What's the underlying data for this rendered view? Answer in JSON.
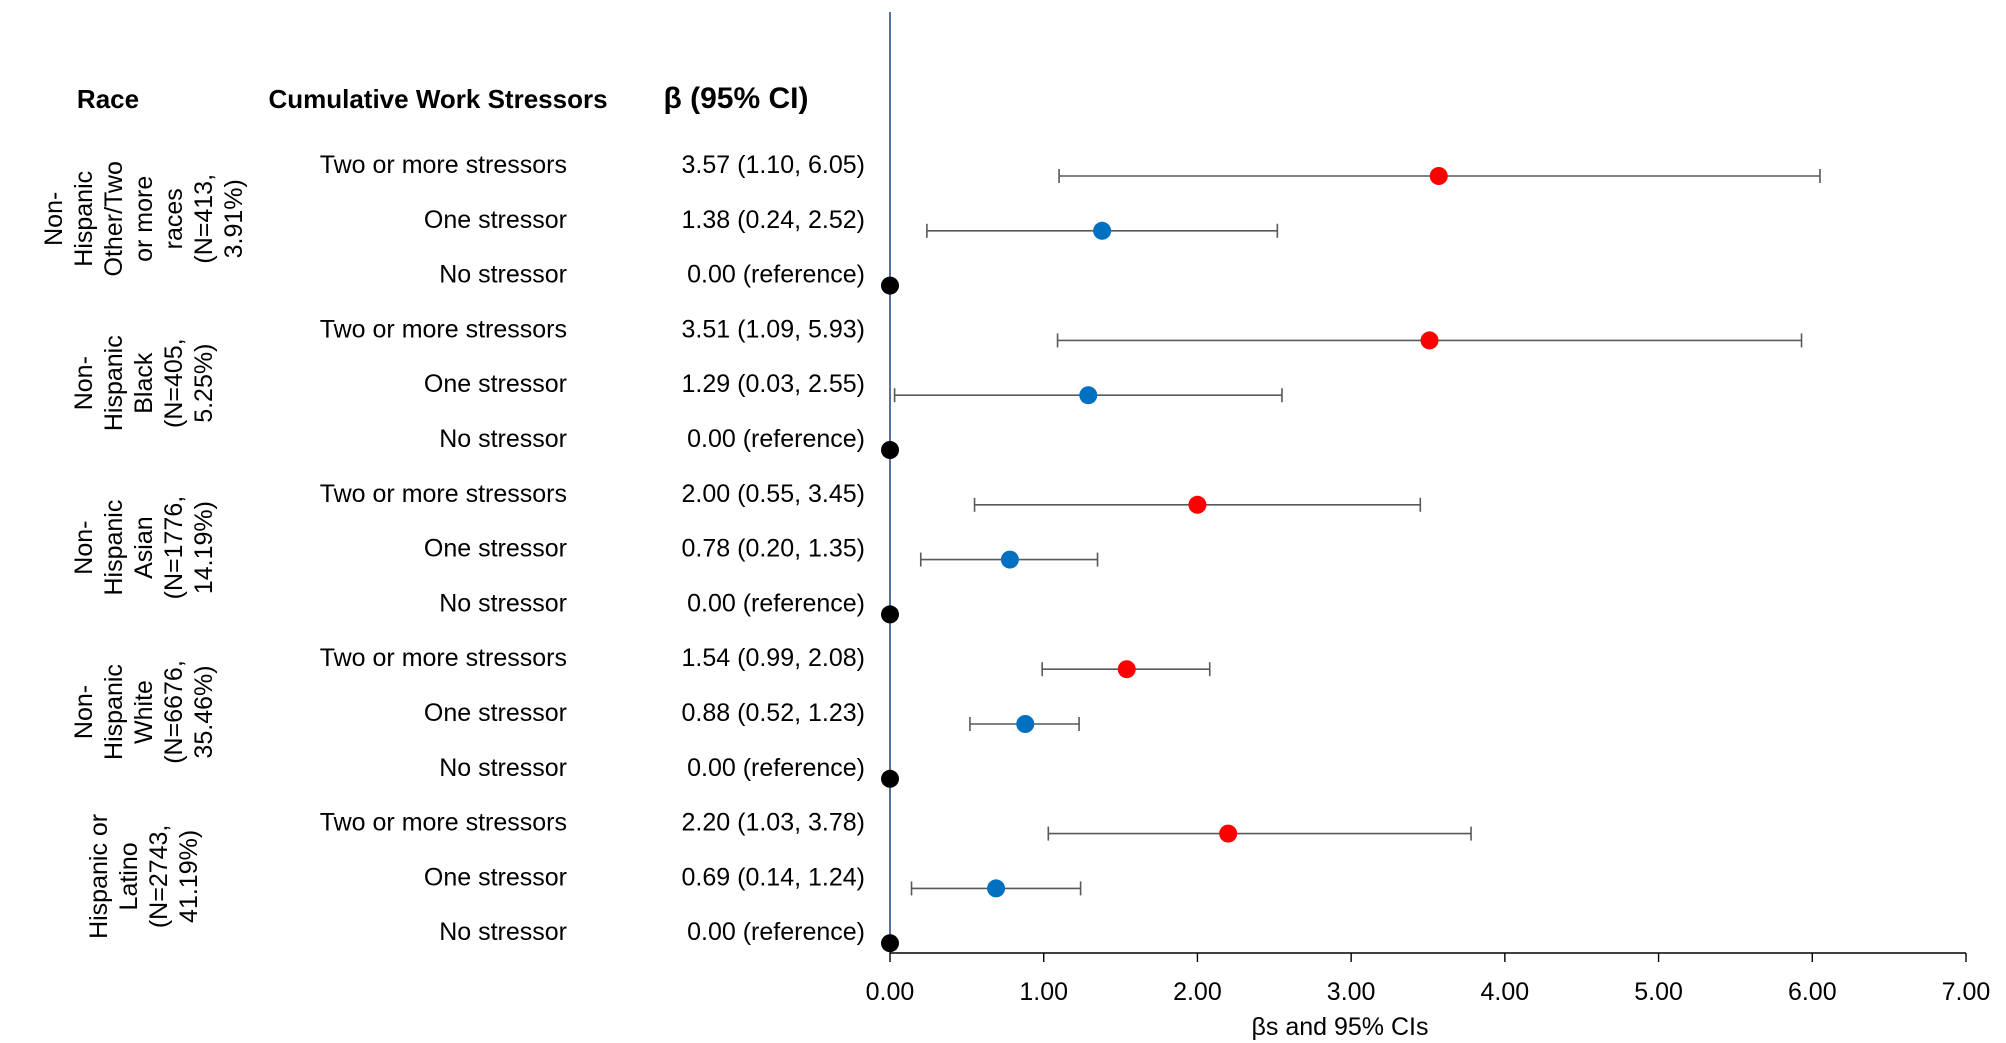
{
  "chart_data": {
    "type": "forest",
    "headers": {
      "race": "Race",
      "stressors": "Cumulative Work Stressors",
      "beta": "β (95% CI)"
    },
    "xlabel": "βs and 95% CIs",
    "xlim": [
      0,
      7
    ],
    "xticks": [
      "0.00",
      "1.00",
      "2.00",
      "3.00",
      "4.00",
      "5.00",
      "6.00",
      "7.00"
    ],
    "colors": {
      "two_or_more": "#ff0000",
      "one": "#0070c0",
      "none": "#000000",
      "axis": "#2f4a8c",
      "whisker": "#595959"
    },
    "groups": [
      {
        "race_lines": [
          "Non-",
          "Hispanic",
          "Other/Two",
          "or more",
          "races",
          "(N=413,",
          "3.91%)"
        ],
        "rows": [
          {
            "label": "Two or more stressors",
            "ci_text": "3.57 (1.10, 6.05)",
            "beta": 3.57,
            "lo": 1.1,
            "hi": 6.05,
            "level": "two_or_more"
          },
          {
            "label": "One stressor",
            "ci_text": "1.38 (0.24, 2.52)",
            "beta": 1.38,
            "lo": 0.24,
            "hi": 2.52,
            "level": "one"
          },
          {
            "label": "No stressor",
            "ci_text": "0.00 (reference)",
            "beta": 0.0,
            "lo": null,
            "hi": null,
            "level": "none"
          }
        ]
      },
      {
        "race_lines": [
          "Non-",
          "Hispanic",
          "Black",
          "(N=405,",
          "5.25%)"
        ],
        "rows": [
          {
            "label": "Two or more stressors",
            "ci_text": "3.51 (1.09, 5.93)",
            "beta": 3.51,
            "lo": 1.09,
            "hi": 5.93,
            "level": "two_or_more"
          },
          {
            "label": "One stressor",
            "ci_text": "1.29 (0.03, 2.55)",
            "beta": 1.29,
            "lo": 0.03,
            "hi": 2.55,
            "level": "one"
          },
          {
            "label": "No stressor",
            "ci_text": "0.00 (reference)",
            "beta": 0.0,
            "lo": null,
            "hi": null,
            "level": "none"
          }
        ]
      },
      {
        "race_lines": [
          "Non-",
          "Hispanic",
          "Asian",
          "(N=1776,",
          "14.19%)"
        ],
        "rows": [
          {
            "label": "Two or more stressors",
            "ci_text": "2.00 (0.55, 3.45)",
            "beta": 2.0,
            "lo": 0.55,
            "hi": 3.45,
            "level": "two_or_more"
          },
          {
            "label": "One stressor",
            "ci_text": "0.78 (0.20, 1.35)",
            "beta": 0.78,
            "lo": 0.2,
            "hi": 1.35,
            "level": "one"
          },
          {
            "label": "No stressor",
            "ci_text": "0.00 (reference)",
            "beta": 0.0,
            "lo": null,
            "hi": null,
            "level": "none"
          }
        ]
      },
      {
        "race_lines": [
          "Non-",
          "Hispanic",
          "White",
          "(N=6676,",
          "35.46%)"
        ],
        "rows": [
          {
            "label": "Two or more stressors",
            "ci_text": "1.54 (0.99, 2.08)",
            "beta": 1.54,
            "lo": 0.99,
            "hi": 2.08,
            "level": "two_or_more"
          },
          {
            "label": "One stressor",
            "ci_text": "0.88 (0.52, 1.23)",
            "beta": 0.88,
            "lo": 0.52,
            "hi": 1.23,
            "level": "one"
          },
          {
            "label": "No stressor",
            "ci_text": "0.00 (reference)",
            "beta": 0.0,
            "lo": null,
            "hi": null,
            "level": "none"
          }
        ]
      },
      {
        "race_lines": [
          "Hispanic or",
          "Latino",
          "(N=2743,",
          "41.19%)"
        ],
        "rows": [
          {
            "label": "Two or more stressors",
            "ci_text": "2.20 (1.03, 3.78)",
            "beta": 2.2,
            "lo": 1.03,
            "hi": 3.78,
            "level": "two_or_more"
          },
          {
            "label": "One stressor",
            "ci_text": "0.69 (0.14, 1.24)",
            "beta": 0.69,
            "lo": 0.14,
            "hi": 1.24,
            "level": "one"
          },
          {
            "label": "No stressor",
            "ci_text": "0.00 (reference)",
            "beta": 0.0,
            "lo": null,
            "hi": null,
            "level": "none"
          }
        ]
      }
    ]
  }
}
